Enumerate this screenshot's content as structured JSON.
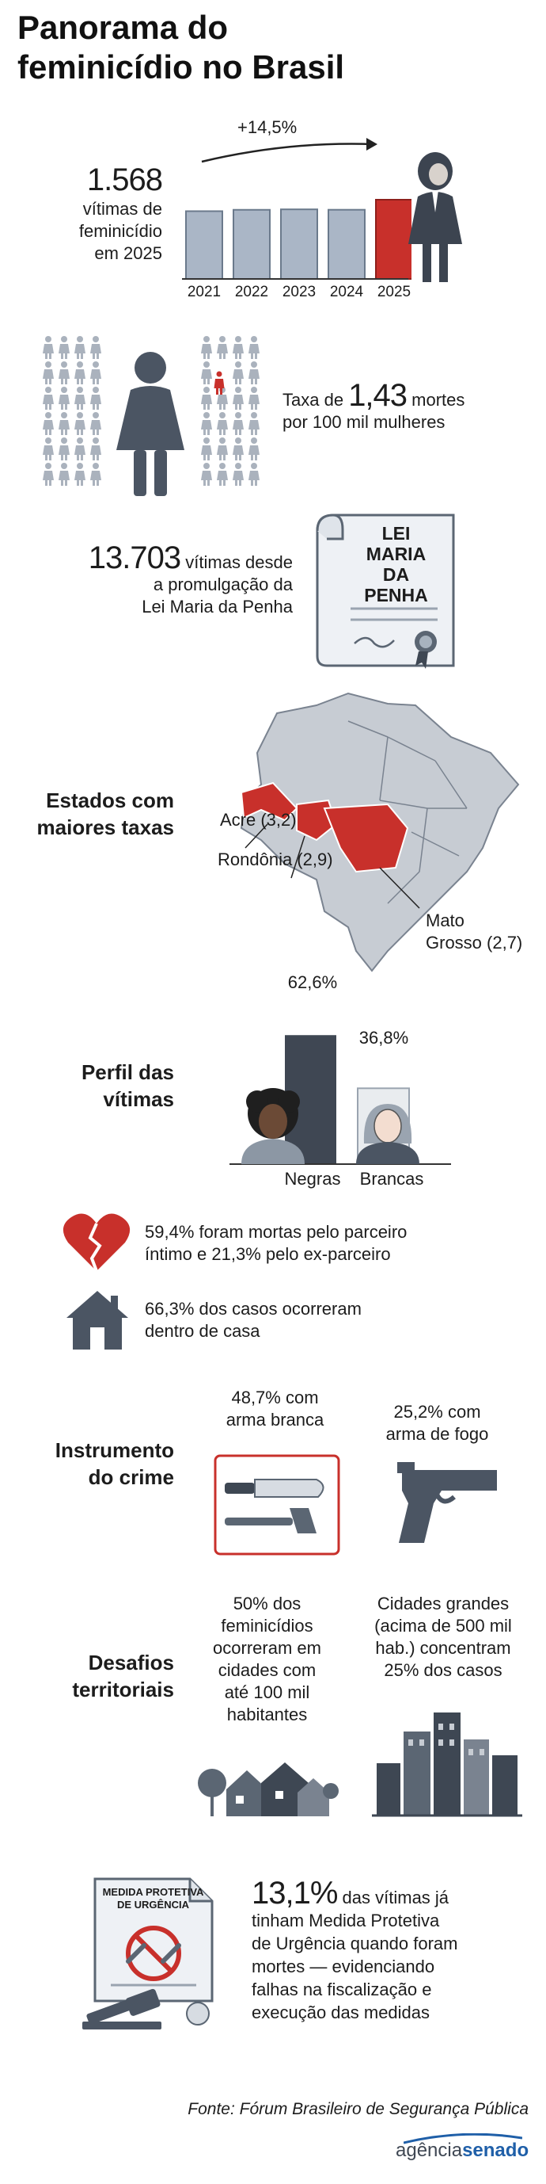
{
  "title": {
    "line1": "Panorama do",
    "line2": "feminicídio no Brasil"
  },
  "victims": {
    "number": "1.568",
    "text_lines": [
      "vítimas de",
      "feminicídio",
      "em 2025"
    ],
    "growth": "+14,5%"
  },
  "chart_data": {
    "type": "bar",
    "categories": [
      "2021",
      "2022",
      "2023",
      "2024",
      "2025"
    ],
    "values": [
      1341,
      1368,
      1377,
      1369,
      1568
    ],
    "highlight": "2025",
    "colors": {
      "bar": "#aab6c6",
      "highlight": "#c8302b"
    }
  },
  "rate": {
    "prefix": "Taxa de",
    "value": "1,43",
    "suffix": "mortes",
    "line2": "por 100 mil mulheres"
  },
  "law": {
    "number": "13.703",
    "line1_suffix": "vítimas desde",
    "line2": "a promulgação da",
    "line3": "Lei Maria da Penha",
    "doc_lines": [
      "LEI",
      "MARIA",
      "DA PENHA"
    ]
  },
  "states": {
    "label_lines": [
      "Estados com",
      "maiores taxas"
    ],
    "acre": "Acre (3,2)",
    "rondonia": "Rondônia (2,9)",
    "mt_line1": "Mato",
    "mt_line2": "Grosso (2,7)",
    "highlight_color": "#c8302b"
  },
  "profile": {
    "label_lines": [
      "Perfil das",
      "vítimas"
    ],
    "black_pct": "62,6%",
    "white_pct": "36,8%",
    "black_value": 62.6,
    "white_value": 36.8,
    "black_label": "Negras",
    "white_label": "Brancas"
  },
  "partner": {
    "line1": "59,4% foram mortas pelo parceiro",
    "line2": "íntimo e 21,3% pelo ex-parceiro"
  },
  "home": {
    "line1": "66,3% dos casos ocorreram",
    "line2": "dentro de casa"
  },
  "weapon": {
    "label_lines": [
      "Instrumento",
      "do crime"
    ],
    "white_lines": [
      "48,7% com",
      "arma branca"
    ],
    "fire_lines": [
      "25,2% com",
      "arma de fogo"
    ]
  },
  "territory": {
    "label_lines": [
      "Desafios",
      "territoriais"
    ],
    "small_lines": [
      "50% dos",
      "feminicídios",
      "ocorreram em",
      "cidades com",
      "até 100 mil",
      "habitantes"
    ],
    "big_lines": [
      "Cidades grandes",
      "(acima de 500 mil",
      "hab.) concentram",
      "25% dos casos"
    ]
  },
  "protective": {
    "pct": "13,1%",
    "line1_suffix": "das vítimas já",
    "lines": [
      "tinham Medida Protetiva",
      "de Urgência quando foram",
      "mortes — evidenciando",
      "falhas na fiscalização e",
      "execução das medidas"
    ],
    "doc_lines": [
      "MEDIDA PROTETIVA",
      "DE URGÊNCIA"
    ]
  },
  "source": "Fonte: Fórum Brasileiro de Segurança Pública",
  "logo": {
    "part1": "agência",
    "part2": "senado"
  }
}
